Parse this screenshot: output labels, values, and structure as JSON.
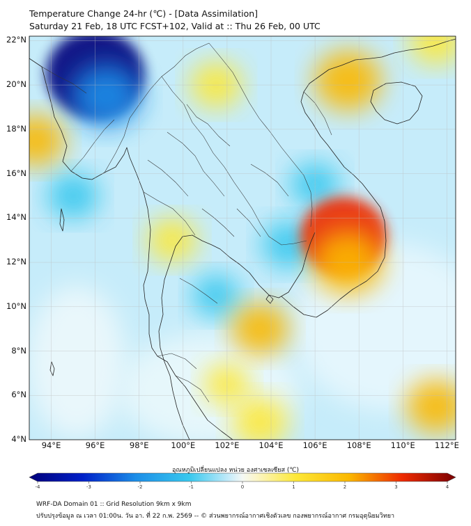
{
  "title": {
    "line1": "Temperature Change 24-hr (℃) - [Data Assimilation]",
    "line2": "Saturday 21 Feb, 18 UTC FCST+102, Valid at :: Thu 26 Feb, 00 UTC"
  },
  "map": {
    "lat_labels": [
      "22°N",
      "20°N",
      "18°N",
      "16°N",
      "14°N",
      "12°N",
      "10°N",
      "8°N",
      "6°N",
      "4°N"
    ],
    "lon_labels": [
      "94°E",
      "96°E",
      "98°E",
      "100°E",
      "102°E",
      "104°E",
      "106°E",
      "108°E",
      "110°E",
      "112°E"
    ],
    "extent": {
      "lon_min": 93,
      "lon_max": 112.4,
      "lat_min": 4,
      "lat_max": 22.2
    },
    "anomalies": [
      {
        "name": "cold-core-burma",
        "lon": 96,
        "lat": 20.5,
        "value": -3.6
      },
      {
        "name": "cold-burma-east",
        "lon": 96.5,
        "lat": 19.5,
        "value": -2.2
      },
      {
        "name": "cool-andaman",
        "lon": 95,
        "lat": 15,
        "value": -1.2
      },
      {
        "name": "cool-gulf-thailand",
        "lon": 101.5,
        "lat": 10.5,
        "value": -1.0
      },
      {
        "name": "cool-cambodia",
        "lon": 104.8,
        "lat": 12.8,
        "value": -1.3
      },
      {
        "name": "cool-laos-east",
        "lon": 106,
        "lat": 15.5,
        "value": -1.1
      },
      {
        "name": "warm-vietnam-central",
        "lon": 107.3,
        "lat": 13.2,
        "value": 3.0
      },
      {
        "name": "warm-vietnam-south",
        "lon": 107.5,
        "lat": 12,
        "value": 2.2
      },
      {
        "name": "warm-west-edge",
        "lon": 93.3,
        "lat": 17.5,
        "value": 1.5
      },
      {
        "name": "warm-tonkin",
        "lon": 107.5,
        "lat": 20.2,
        "value": 2.0
      },
      {
        "name": "warm-ne-corner",
        "lon": 111.5,
        "lat": 22,
        "value": 1.3
      },
      {
        "name": "warm-north-laos",
        "lon": 101.5,
        "lat": 20,
        "value": 1.2
      },
      {
        "name": "warm-central-thai",
        "lon": 99.5,
        "lat": 13,
        "value": 1.1
      },
      {
        "name": "warm-gulf-mid",
        "lon": 103.5,
        "lat": 9,
        "value": 1.5
      },
      {
        "name": "warm-south-sea",
        "lon": 103.5,
        "lat": 4.8,
        "value": 1.4
      },
      {
        "name": "warm-southeast",
        "lon": 111.5,
        "lat": 5.5,
        "value": 1.6
      },
      {
        "name": "warm-peninsula",
        "lon": 102,
        "lat": 6.5,
        "value": 0.9
      }
    ]
  },
  "colorbar": {
    "title": "อุณหภูมิเปลี่ยนแปลง  หน่วย องศาเซลเซียส (℃)",
    "ticks": [
      "-4",
      "-3",
      "-2",
      "-1",
      "0",
      "1",
      "2",
      "3",
      "4"
    ],
    "min": -4,
    "max": 4
  },
  "footer": {
    "line1": "WRF-DA Domain 01 :: Grid Resolution 9km x 9km",
    "line2": "ปรับปรุงข้อมูล ณ เวลา 01:00น. วัน อา. ที่ 22 ก.พ. 2569 -- © ส่วนพยากรณ์อากาศเชิงตัวเลข กองพยากรณ์อากาศ กรมอุตุนิยมวิทยา"
  },
  "colors": {
    "base": "#c6ecfa",
    "ocean_light": "#e4f6fd",
    "coast": "#222222",
    "border": "#333333",
    "grid": "#bbbbbb"
  }
}
